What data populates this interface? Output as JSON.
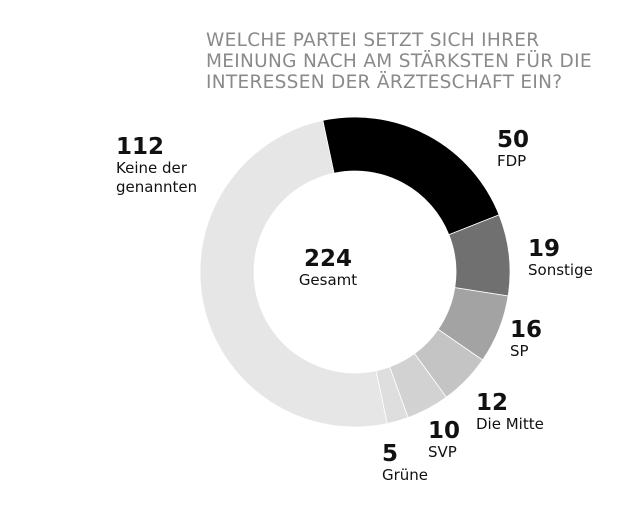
{
  "chart_data": {
    "type": "pie",
    "title_lines": [
      "WELCHE PARTEI SETZT SICH IHRER",
      "MEINUNG NACH AM STÄRKSTEN FÜR DIE",
      "INTERESSEN DER ÄRZTESCHAFT EIN?"
    ],
    "center": {
      "value": "224",
      "label": "Gesamt"
    },
    "slices": [
      {
        "label": "FDP",
        "value": 50,
        "color": "#000000"
      },
      {
        "label": "Sonstige",
        "value": 19,
        "color": "#707070"
      },
      {
        "label": "SP",
        "value": 16,
        "color": "#a3a3a3"
      },
      {
        "label": "Die Mitte",
        "value": 12,
        "color": "#c4c4c4"
      },
      {
        "label": "SVP",
        "value": 10,
        "color": "#d2d2d2"
      },
      {
        "label": "Grüne",
        "value": 5,
        "color": "#dedede"
      },
      {
        "label": "Keine der genannten",
        "value": 112,
        "color": "#e6e6e6"
      }
    ],
    "labels": [
      {
        "value": "50",
        "name": "FDP"
      },
      {
        "value": "19",
        "name": "Sonstige"
      },
      {
        "value": "16",
        "name": "SP"
      },
      {
        "value": "12",
        "name": "Die Mitte"
      },
      {
        "value": "10",
        "name": "SVP"
      },
      {
        "value": "5",
        "name": "Grüne"
      },
      {
        "value": "112",
        "name": "Keine der\ngenannten"
      }
    ]
  }
}
